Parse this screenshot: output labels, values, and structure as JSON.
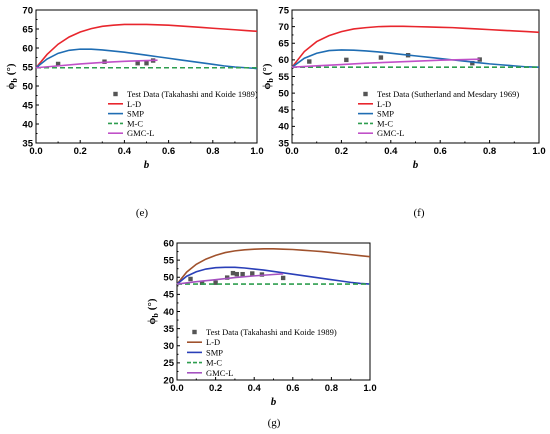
{
  "chart_data": [
    {
      "type": "line",
      "panel_label": "(e)",
      "xlabel": "b",
      "ylabel": "ϕb (°)",
      "ylabel_main": "ϕ",
      "ylabel_sub": "b",
      "ylabel_unit": "(°)",
      "xlim": [
        0.0,
        1.0
      ],
      "ylim": [
        35,
        70
      ],
      "xticks": [
        "0.0",
        "0.2",
        "0.4",
        "0.6",
        "0.8",
        "1.0"
      ],
      "yticks": [
        "35",
        "40",
        "45",
        "50",
        "55",
        "60",
        "65",
        "70"
      ],
      "legend_position": "lower-right",
      "series": [
        {
          "name": "Test Data (Takahashi and Koide 1989)",
          "kind": "scatter",
          "color": "#555555",
          "x": [
            0.1,
            0.31,
            0.46,
            0.5,
            0.53
          ],
          "y": [
            55.8,
            56.4,
            56.0,
            56.0,
            56.7
          ]
        },
        {
          "name": "L-D",
          "kind": "line",
          "color": "#e8262d",
          "x": [
            0,
            0.05,
            0.1,
            0.15,
            0.2,
            0.25,
            0.3,
            0.35,
            0.4,
            0.45,
            0.5,
            0.55,
            0.6,
            0.65,
            0.7,
            0.75,
            0.8,
            0.85,
            0.9,
            0.95,
            1.0
          ],
          "y": [
            54.8,
            58.3,
            61.0,
            62.9,
            64.2,
            65.1,
            65.7,
            66.0,
            66.2,
            66.2,
            66.2,
            66.1,
            66.0,
            65.8,
            65.6,
            65.4,
            65.2,
            65.0,
            64.8,
            64.6,
            64.4
          ]
        },
        {
          "name": "SMP",
          "kind": "line",
          "color": "#1f6db3",
          "x": [
            0,
            0.05,
            0.1,
            0.15,
            0.2,
            0.25,
            0.3,
            0.35,
            0.4,
            0.45,
            0.5,
            0.55,
            0.6,
            0.65,
            0.7,
            0.75,
            0.8,
            0.85,
            0.9,
            0.95,
            1.0
          ],
          "y": [
            54.8,
            57.1,
            58.6,
            59.4,
            59.7,
            59.7,
            59.5,
            59.2,
            58.9,
            58.5,
            58.1,
            57.7,
            57.3,
            56.9,
            56.5,
            56.1,
            55.7,
            55.3,
            55.0,
            54.8,
            54.6
          ]
        },
        {
          "name": "M-C",
          "kind": "dashed",
          "color": "#2e9e4f",
          "x": [
            0,
            1.0
          ],
          "y": [
            54.8,
            54.8
          ]
        },
        {
          "name": "GMC-L",
          "kind": "line",
          "color": "#c050c8",
          "x": [
            0,
            0.1,
            0.2,
            0.3,
            0.4,
            0.5,
            0.55
          ],
          "y": [
            54.8,
            55.3,
            55.8,
            56.2,
            56.5,
            56.7,
            56.8
          ]
        }
      ]
    },
    {
      "type": "line",
      "panel_label": "(f)",
      "xlabel": "b",
      "ylabel": "ϕb (°)",
      "ylabel_main": "ϕ",
      "ylabel_sub": "b",
      "ylabel_unit": "(°)",
      "xlim": [
        0.0,
        1.0
      ],
      "ylim": [
        35,
        75
      ],
      "xticks": [
        "0.0",
        "0.2",
        "0.4",
        "0.6",
        "0.8",
        "1.0"
      ],
      "yticks": [
        "35",
        "40",
        "45",
        "50",
        "55",
        "60",
        "65",
        "70",
        "75"
      ],
      "legend_position": "lower-right",
      "series": [
        {
          "name": "Test Data (Sutherland and Mesdary 1969)",
          "kind": "scatter",
          "color": "#555555",
          "x": [
            0.07,
            0.22,
            0.36,
            0.47,
            0.73,
            0.76
          ],
          "y": [
            59.5,
            60.0,
            60.7,
            61.4,
            59.0,
            60.1
          ]
        },
        {
          "name": "L-D",
          "kind": "line",
          "color": "#e8262d",
          "x": [
            0,
            0.05,
            0.1,
            0.15,
            0.2,
            0.25,
            0.3,
            0.35,
            0.4,
            0.45,
            0.5,
            0.55,
            0.6,
            0.65,
            0.7,
            0.75,
            0.8,
            0.85,
            0.9,
            0.95,
            1.0
          ],
          "y": [
            57.8,
            62.5,
            65.5,
            67.3,
            68.5,
            69.3,
            69.7,
            70.0,
            70.1,
            70.1,
            70.0,
            69.9,
            69.8,
            69.7,
            69.5,
            69.3,
            69.1,
            68.9,
            68.7,
            68.5,
            68.3
          ]
        },
        {
          "name": "SMP",
          "kind": "line",
          "color": "#1f6db3",
          "x": [
            0,
            0.05,
            0.1,
            0.15,
            0.2,
            0.25,
            0.3,
            0.35,
            0.4,
            0.45,
            0.5,
            0.55,
            0.6,
            0.65,
            0.7,
            0.75,
            0.8,
            0.85,
            0.9,
            0.95,
            1.0
          ],
          "y": [
            57.8,
            60.5,
            62.0,
            62.8,
            63.0,
            62.9,
            62.7,
            62.4,
            62.0,
            61.6,
            61.2,
            60.8,
            60.4,
            60.0,
            59.6,
            59.2,
            58.8,
            58.5,
            58.2,
            57.9,
            57.8
          ]
        },
        {
          "name": "M-C",
          "kind": "dashed",
          "color": "#2e9e4f",
          "x": [
            0,
            1.0
          ],
          "y": [
            57.8,
            57.8
          ]
        },
        {
          "name": "GMC-L",
          "kind": "line",
          "color": "#c050c8",
          "x": [
            0,
            0.1,
            0.2,
            0.3,
            0.4,
            0.5,
            0.6,
            0.7,
            0.76
          ],
          "y": [
            57.8,
            58.2,
            58.6,
            59.0,
            59.3,
            59.6,
            59.9,
            60.1,
            60.2
          ]
        }
      ]
    },
    {
      "type": "line",
      "panel_label": "(g)",
      "xlabel": "b",
      "ylabel": "ϕb (°)",
      "ylabel_main": "ϕ",
      "ylabel_sub": "b",
      "ylabel_unit": "(°)",
      "xlim": [
        0.0,
        1.0
      ],
      "ylim": [
        20,
        60
      ],
      "xticks": [
        "0.0",
        "0.2",
        "0.4",
        "0.6",
        "0.8",
        "1.0"
      ],
      "yticks": [
        "20",
        "25",
        "30",
        "35",
        "40",
        "45",
        "50",
        "55",
        "60"
      ],
      "legend_position": "lower-left",
      "series": [
        {
          "name": "Test Data (Takahashi and Koide 1989)",
          "kind": "scatter",
          "color": "#555555",
          "x": [
            0.07,
            0.13,
            0.2,
            0.26,
            0.29,
            0.31,
            0.34,
            0.39,
            0.44,
            0.55
          ],
          "y": [
            49.5,
            48.4,
            48.4,
            49.9,
            51.2,
            50.9,
            50.9,
            51.1,
            50.8,
            49.8
          ]
        },
        {
          "name": "L-D",
          "kind": "line",
          "color": "#a0522d",
          "x": [
            0,
            0.05,
            0.1,
            0.15,
            0.2,
            0.25,
            0.3,
            0.35,
            0.4,
            0.45,
            0.5,
            0.55,
            0.6,
            0.65,
            0.7,
            0.75,
            0.8,
            0.85,
            0.9,
            0.95,
            1.0
          ],
          "y": [
            48.0,
            51.5,
            53.8,
            55.3,
            56.4,
            57.2,
            57.7,
            58.0,
            58.2,
            58.3,
            58.3,
            58.2,
            58.1,
            57.9,
            57.7,
            57.5,
            57.2,
            56.9,
            56.6,
            56.3,
            56.0
          ]
        },
        {
          "name": "SMP",
          "kind": "line",
          "color": "#2a3fb8",
          "x": [
            0,
            0.05,
            0.1,
            0.15,
            0.2,
            0.25,
            0.3,
            0.35,
            0.4,
            0.45,
            0.5,
            0.55,
            0.6,
            0.65,
            0.7,
            0.75,
            0.8,
            0.85,
            0.9,
            0.95,
            1.0
          ],
          "y": [
            48.0,
            50.3,
            51.6,
            52.4,
            52.8,
            52.9,
            52.9,
            52.7,
            52.4,
            52.1,
            51.7,
            51.3,
            50.9,
            50.5,
            50.1,
            49.7,
            49.3,
            48.9,
            48.5,
            48.2,
            48.0
          ]
        },
        {
          "name": "M-C",
          "kind": "dashed",
          "color": "#2e9e4f",
          "x": [
            0,
            1.0
          ],
          "y": [
            48.0,
            48.0
          ]
        },
        {
          "name": "GMC-L",
          "kind": "line",
          "color": "#a552c0",
          "x": [
            0,
            0.1,
            0.2,
            0.3,
            0.4,
            0.5,
            0.55
          ],
          "y": [
            48.0,
            48.7,
            49.3,
            49.9,
            50.4,
            50.8,
            51.0
          ]
        }
      ]
    }
  ]
}
